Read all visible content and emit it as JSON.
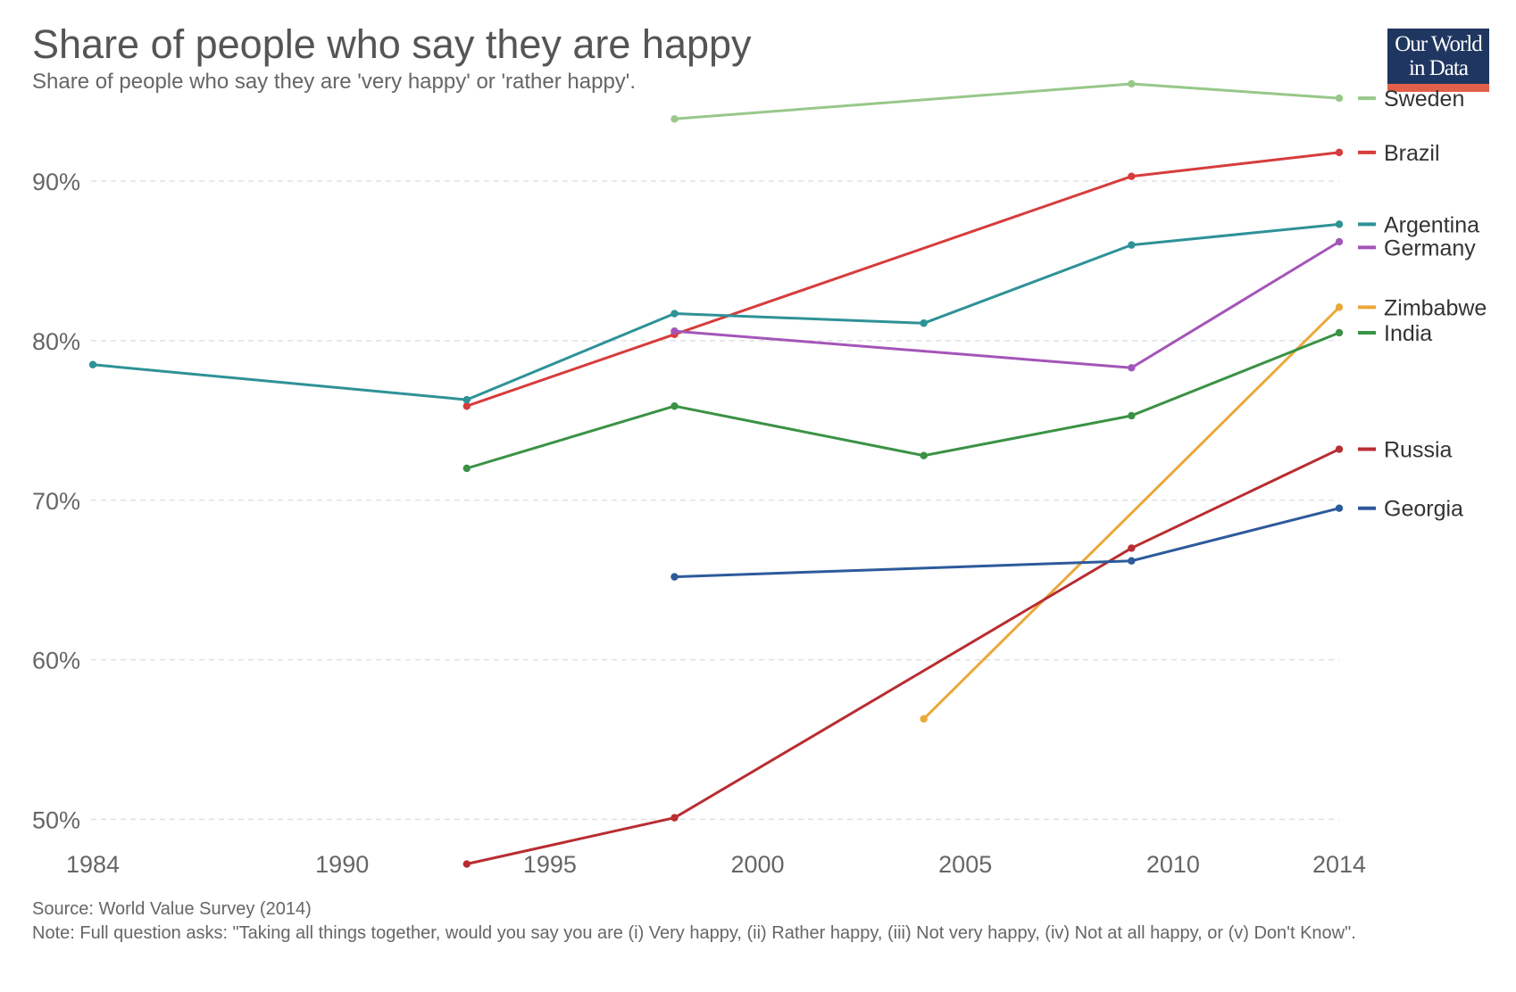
{
  "chart_data": {
    "type": "line",
    "title": "Share of people who say they are happy",
    "subtitle": "Share of people who say they are 'very happy' or 'rather happy'.",
    "xlabel": "",
    "ylabel": "",
    "xlim": [
      1984,
      2014
    ],
    "ylim": [
      46,
      98
    ],
    "x_ticks": [
      {
        "value": 1984,
        "label": "1984"
      },
      {
        "value": 1990,
        "label": "1990"
      },
      {
        "value": 1995,
        "label": "1995"
      },
      {
        "value": 2000,
        "label": "2000"
      },
      {
        "value": 2005,
        "label": "2005"
      },
      {
        "value": 2010,
        "label": "2010"
      },
      {
        "value": 2014,
        "label": "2014"
      }
    ],
    "y_ticks": [
      {
        "value": 50,
        "label": "50%"
      },
      {
        "value": 60,
        "label": "60%"
      },
      {
        "value": 70,
        "label": "70%"
      },
      {
        "value": 80,
        "label": "80%"
      },
      {
        "value": 90,
        "label": "90%"
      }
    ],
    "grid": "horizontal-dashed",
    "legend": "right",
    "series": [
      {
        "name": "Sweden",
        "color": "#98c88a",
        "x": [
          1998,
          2009,
          2014
        ],
        "y": [
          93.9,
          96.1,
          95.2
        ]
      },
      {
        "name": "Brazil",
        "color": "#d73c3c",
        "x": [
          1993,
          1998,
          2009,
          2014
        ],
        "y": [
          75.9,
          80.4,
          90.3,
          91.8
        ]
      },
      {
        "name": "Argentina",
        "color": "#2e9297",
        "x": [
          1984,
          1993,
          1998,
          2004,
          2009,
          2014
        ],
        "y": [
          78.5,
          76.3,
          81.7,
          81.1,
          86.0,
          87.3
        ]
      },
      {
        "name": "Germany",
        "color": "#a455b8",
        "x": [
          1998,
          2009,
          2014
        ],
        "y": [
          80.6,
          78.3,
          86.2
        ]
      },
      {
        "name": "Zimbabwe",
        "color": "#eba83a",
        "x": [
          2004,
          2014
        ],
        "y": [
          56.3,
          82.1
        ]
      },
      {
        "name": "India",
        "color": "#3a9244",
        "x": [
          1993,
          1998,
          2004,
          2009,
          2014
        ],
        "y": [
          72.0,
          75.9,
          72.8,
          75.3,
          80.5
        ]
      },
      {
        "name": "Russia",
        "color": "#b82d31",
        "x": [
          1993,
          1998,
          2009,
          2014
        ],
        "y": [
          47.2,
          50.1,
          67.0,
          73.2
        ]
      },
      {
        "name": "Georgia",
        "color": "#2d5a9b",
        "x": [
          1998,
          2009,
          2014
        ],
        "y": [
          65.2,
          66.2,
          69.5
        ]
      }
    ]
  },
  "logo": {
    "line1": "Our World",
    "line2": "in Data"
  },
  "footer": {
    "source": "Source: World Value Survey (2014)",
    "note": "Note: Full question asks: \"Taking all things together, would you say you are (i) Very happy, (ii) Rather happy, (iii) Not very happy, (iv) Not at all happy, or (v) Don't Know\"."
  }
}
